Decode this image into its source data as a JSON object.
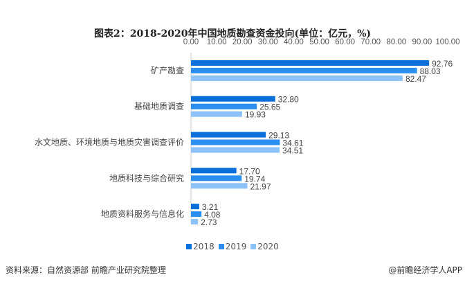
{
  "title": "图表2：2018-2020年中国地质勘查资金投向(单位：亿元，%)",
  "source": "资料来源：自然资源部 前瞻产业研究院整理",
  "credit": "@前瞻经济学人APP",
  "chart_data": {
    "type": "bar",
    "orientation": "horizontal",
    "title": "图表2：2018-2020年中国地质勘查资金投向(单位：亿元，%)",
    "categories": [
      "矿产勘查",
      "基础地质调查",
      "水文地质、环境地质与地质灾害调查评价",
      "地质科技与综合研究",
      "地质资料服务与信息化"
    ],
    "series": [
      {
        "name": "2018",
        "color": "#0a6fd8",
        "values": [
          92.76,
          32.8,
          29.13,
          17.7,
          3.21
        ]
      },
      {
        "name": "2019",
        "color": "#2b8ff0",
        "values": [
          88.03,
          25.65,
          34.61,
          19.74,
          4.08
        ]
      },
      {
        "name": "2020",
        "color": "#8cc2f8",
        "values": [
          82.47,
          19.93,
          34.51,
          21.97,
          2.73
        ]
      }
    ],
    "xlim": [
      0,
      100
    ],
    "ticks": [
      "0.00",
      "10.00",
      "20.00",
      "30.00",
      "40.00",
      "50.00",
      "60.00",
      "70.00",
      "80.00",
      "90.00",
      "100.00"
    ],
    "axis_position": "top",
    "grid": false,
    "legend": "bottom"
  }
}
